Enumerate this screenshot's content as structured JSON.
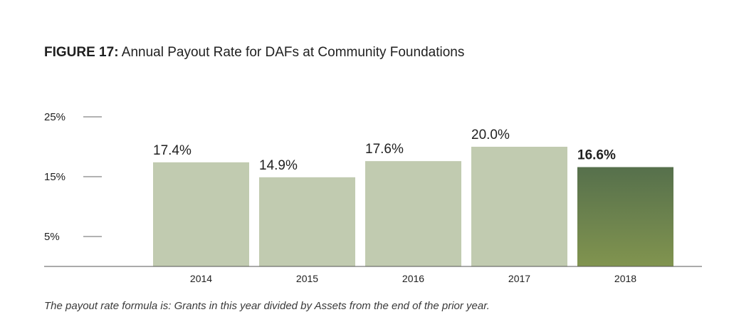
{
  "title": {
    "label": "FIGURE 17:",
    "text": "Annual Payout Rate for DAFs at Community Foundations"
  },
  "chart_data": {
    "type": "bar",
    "categories": [
      "2014",
      "2015",
      "2016",
      "2017",
      "2018"
    ],
    "values": [
      17.4,
      14.9,
      17.6,
      20.0,
      16.6
    ],
    "data_labels": [
      "17.4%",
      "14.9%",
      "17.6%",
      "20.0%",
      "16.6%"
    ],
    "highlighted_category": "2018",
    "y_ticks": [
      {
        "value": 5,
        "label": "5%"
      },
      {
        "value": 15,
        "label": "15%"
      },
      {
        "value": 25,
        "label": "25%"
      }
    ],
    "ylim": [
      0,
      25
    ],
    "grid": false,
    "legend": "none",
    "colors": {
      "bar": "#c1cbb0",
      "highlight_top": "#56704c",
      "highlight_bottom": "#81944f",
      "axis": "#555555",
      "tick": "#666666",
      "text": "#1f1f1f"
    }
  },
  "footnote": "The payout rate formula is: Grants in this year divided by Assets from the end of the prior year."
}
